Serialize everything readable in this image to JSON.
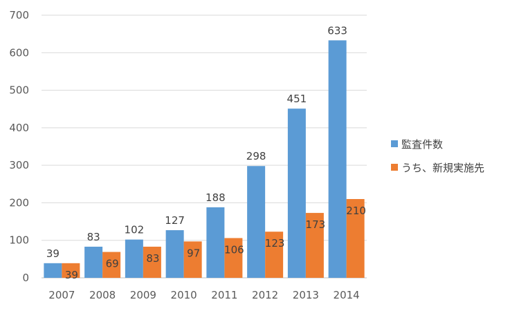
{
  "chart_data": {
    "type": "bar",
    "categories": [
      "2007",
      "2008",
      "2009",
      "2010",
      "2011",
      "2012",
      "2013",
      "2014"
    ],
    "series": [
      {
        "name": "監査件数",
        "values": [
          39,
          83,
          102,
          127,
          188,
          298,
          451,
          633
        ],
        "color": "#5B9BD5"
      },
      {
        "name": "うち、新規実施先",
        "values": [
          39,
          69,
          83,
          97,
          106,
          123,
          173,
          210
        ],
        "color": "#ED7D31"
      }
    ],
    "y_ticks": [
      "0",
      "100",
      "200",
      "300",
      "400",
      "500",
      "600",
      "700"
    ],
    "ylim": [
      0,
      700
    ],
    "grid": true,
    "legend_position": "right"
  }
}
